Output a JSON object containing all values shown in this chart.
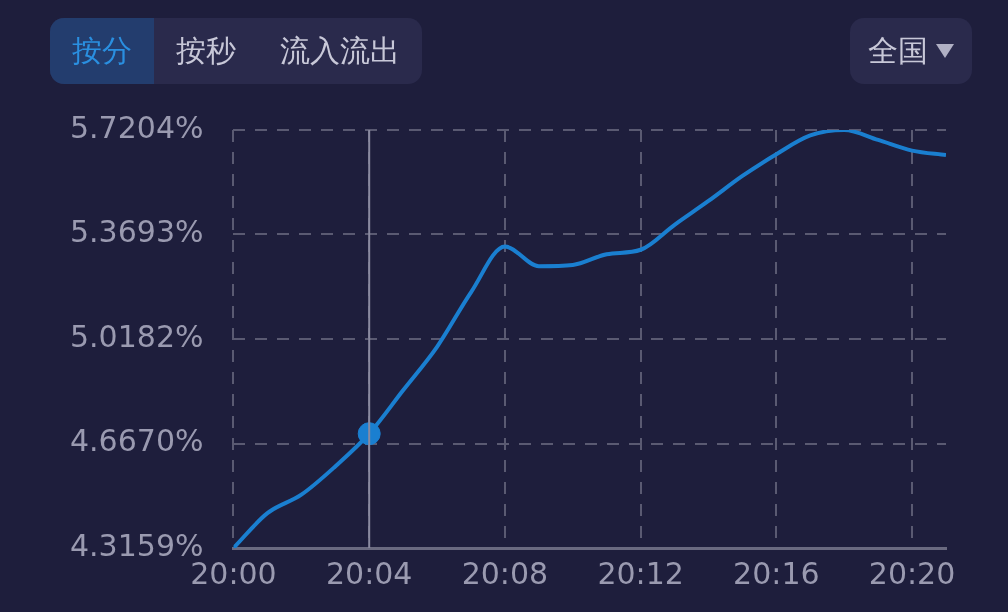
{
  "chart_data": {
    "type": "line",
    "annotations": [
      "按分",
      "按秒",
      "流入流出",
      "全国"
    ],
    "xlim": [
      20,
      20.35
    ],
    "xticks": [
      {
        "value": 20,
        "label": "20:00"
      },
      {
        "value": 20.066667,
        "label": "20:04"
      },
      {
        "value": 20.133333,
        "label": "20:08"
      },
      {
        "value": 20.2,
        "label": "20:12"
      },
      {
        "value": 20.266667,
        "label": "20:16"
      },
      {
        "value": 20.333333,
        "label": "20:20"
      }
    ],
    "ylim": [
      4.3159,
      5.7204
    ],
    "yticks": [
      {
        "value": 4.3159,
        "label": "4.3159%"
      },
      {
        "value": 4.667,
        "label": "4.6670%"
      },
      {
        "value": 5.0182,
        "label": "5.0182%"
      },
      {
        "value": 5.3693,
        "label": "5.3693%"
      },
      {
        "value": 5.7204,
        "label": "5.7204%"
      }
    ],
    "grid": true,
    "legend": false,
    "marker": "none",
    "line_style": "solid",
    "ref_lines": [
      {
        "axis": "x",
        "value": 20.066667,
        "color": "#8a8aa0",
        "line_style": "solid"
      }
    ],
    "series": [
      {
        "color": "#1a7fd0",
        "x": [
          20,
          20.016667,
          20.033333,
          20.05,
          20.066667,
          20.083333,
          20.1,
          20.116667,
          20.133333,
          20.15,
          20.166667,
          20.183333,
          20.2,
          20.216667,
          20.233333,
          20.25,
          20.266667,
          20.283333,
          20.3,
          20.316667,
          20.333333,
          20.35
        ],
        "values": [
          4.316,
          4.433,
          4.495,
          4.59,
          4.7,
          4.846,
          4.992,
          5.175,
          5.329,
          5.263,
          5.267,
          5.303,
          5.318,
          5.402,
          5.482,
          5.566,
          5.639,
          5.702,
          5.72,
          5.687,
          5.651,
          5.636
        ]
      },
      {
        "type": "scatter",
        "color": "#1a7fd0",
        "marker": "circle",
        "x": [
          20.066667
        ],
        "values": [
          4.7
        ]
      }
    ]
  }
}
